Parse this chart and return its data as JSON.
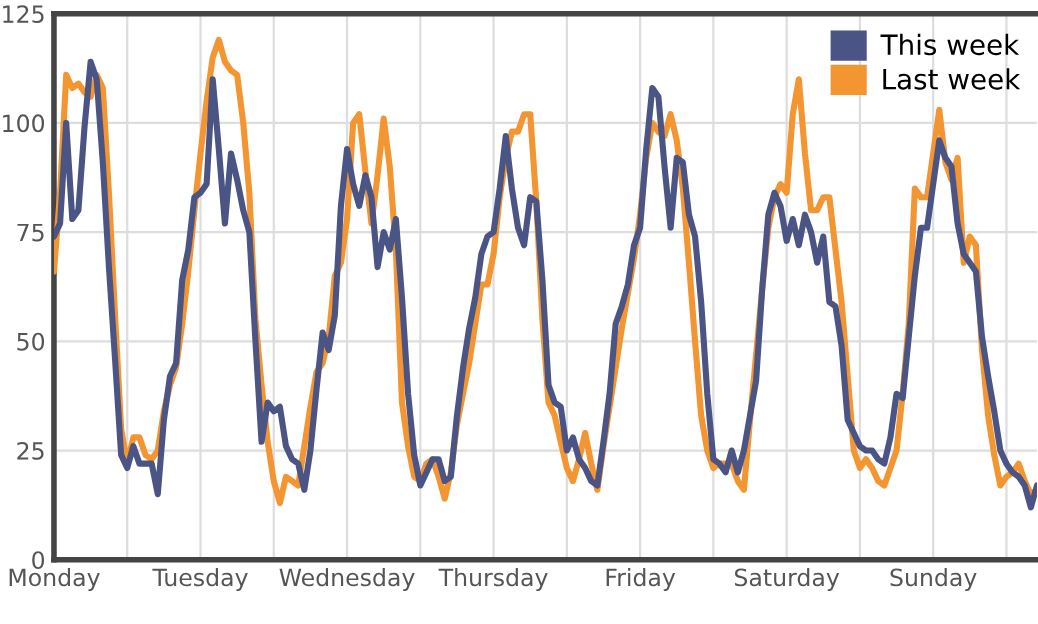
{
  "chart_data": {
    "type": "line",
    "categories": [
      "Monday",
      null,
      null,
      null,
      null,
      null,
      null,
      null,
      null,
      null,
      null,
      null,
      null,
      null,
      null,
      null,
      null,
      null,
      null,
      null,
      null,
      null,
      null,
      null,
      "Tuesday",
      null,
      null,
      null,
      null,
      null,
      null,
      null,
      null,
      null,
      null,
      null,
      null,
      null,
      null,
      null,
      null,
      null,
      null,
      null,
      null,
      null,
      null,
      null,
      "Wednesday",
      null,
      null,
      null,
      null,
      null,
      null,
      null,
      null,
      null,
      null,
      null,
      null,
      null,
      null,
      null,
      null,
      null,
      null,
      null,
      null,
      null,
      null,
      null,
      "Thursday",
      null,
      null,
      null,
      null,
      null,
      null,
      null,
      null,
      null,
      null,
      null,
      null,
      null,
      null,
      null,
      null,
      null,
      null,
      null,
      null,
      null,
      null,
      null,
      "Friday",
      null,
      null,
      null,
      null,
      null,
      null,
      null,
      null,
      null,
      null,
      null,
      null,
      null,
      null,
      null,
      null,
      null,
      null,
      null,
      null,
      null,
      null,
      null,
      "Saturday",
      null,
      null,
      null,
      null,
      null,
      null,
      null,
      null,
      null,
      null,
      null,
      null,
      null,
      null,
      null,
      null,
      null,
      null,
      null,
      null,
      null,
      null,
      null,
      "Sunday",
      null,
      null,
      null,
      null,
      null,
      null,
      null,
      null,
      null,
      null,
      null,
      null,
      null,
      null,
      null,
      null,
      null
    ],
    "ylim": [
      0,
      125
    ],
    "yticks": [
      0,
      25,
      50,
      75,
      100,
      125
    ],
    "grid": true,
    "legend": "top right",
    "series": [
      {
        "name": "This week",
        "color": "#4a5585",
        "values": [
          74,
          77,
          100,
          78,
          80,
          99,
          114,
          110,
          91,
          67,
          46,
          24,
          21,
          26,
          22,
          22,
          22,
          15,
          32,
          42,
          45,
          64,
          71,
          83,
          84,
          86,
          110,
          94,
          77,
          93,
          87,
          80,
          75,
          50,
          27,
          36,
          34,
          35,
          26,
          23,
          22,
          16,
          25,
          39,
          52,
          48,
          56,
          81,
          94,
          86,
          81,
          88,
          83,
          67,
          75,
          71,
          78,
          60,
          38,
          24,
          17,
          20,
          23,
          23,
          18,
          19,
          33,
          44,
          53,
          60,
          70,
          74,
          75,
          85,
          97,
          85,
          76,
          72,
          83,
          82,
          64,
          40,
          36,
          35,
          25,
          28,
          23,
          21,
          18,
          17,
          27,
          38,
          54,
          58,
          63,
          72,
          76,
          94,
          108,
          106,
          90,
          76,
          92,
          91,
          79,
          74,
          59,
          38,
          23,
          22,
          20,
          25,
          20,
          25,
          33,
          41,
          62,
          79,
          84,
          81,
          73,
          78,
          72,
          79,
          75,
          68,
          74,
          59,
          58,
          49,
          32,
          29,
          26,
          25,
          25,
          23,
          22,
          28,
          38,
          37,
          51,
          65,
          76,
          76,
          86,
          96,
          92,
          90,
          77,
          70,
          68,
          66,
          51,
          42,
          34,
          25,
          22,
          20,
          19,
          17,
          12,
          17
        ]
      },
      {
        "name": "Last week",
        "color": "#f39530",
        "values": [
          66,
          84,
          111,
          108,
          109,
          107,
          106,
          111,
          108,
          84,
          56,
          30,
          22,
          28,
          28,
          24,
          23,
          25,
          34,
          40,
          44,
          54,
          66,
          80,
          93,
          105,
          115,
          119,
          114,
          112,
          111,
          100,
          84,
          55,
          40,
          27,
          18,
          13,
          19,
          18,
          17,
          26,
          35,
          43,
          45,
          51,
          65,
          68,
          78,
          100,
          102,
          89,
          77,
          88,
          101,
          90,
          71,
          36,
          26,
          19,
          18,
          22,
          23,
          19,
          14,
          20,
          31,
          38,
          45,
          54,
          63,
          63,
          70,
          83,
          92,
          98,
          98,
          102,
          102,
          82,
          55,
          36,
          33,
          27,
          21,
          18,
          23,
          29,
          22,
          16,
          26,
          35,
          44,
          53,
          61,
          69,
          79,
          92,
          100,
          98,
          97,
          102,
          96,
          85,
          68,
          50,
          33,
          25,
          21,
          22,
          22,
          22,
          18,
          16,
          32,
          47,
          62,
          76,
          83,
          86,
          84,
          102,
          110,
          93,
          80,
          80,
          83,
          83,
          71,
          59,
          42,
          25,
          21,
          23,
          21,
          18,
          17,
          21,
          25,
          38,
          54,
          85,
          83,
          83,
          93,
          103,
          91,
          87,
          92,
          68,
          74,
          72,
          48,
          33,
          24,
          17,
          19,
          20,
          22,
          18,
          15,
          16
        ]
      }
    ]
  }
}
